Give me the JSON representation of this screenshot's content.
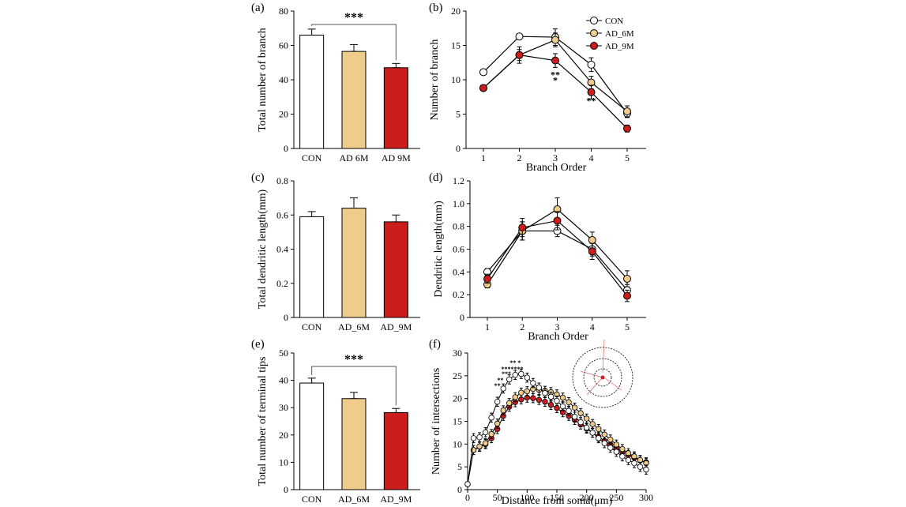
{
  "colors": {
    "con": "#ffffff",
    "ad6": "#f0cc8c",
    "ad9": "#cc1c1c",
    "axis": "#000000",
    "bracket": "#555555",
    "star_olive": "#8c8c20",
    "star_red": "#cc2020"
  },
  "chart_data": [
    {
      "panel": "(a)",
      "type": "bar",
      "ylabel": "Total number of branch",
      "categories": [
        "CON",
        "AD  6M",
        "AD  9M"
      ],
      "values": [
        66,
        56.5,
        47
      ],
      "errors": [
        3.5,
        4,
        2.5
      ],
      "ylim": [
        0,
        80
      ],
      "yticks": [
        "0",
        "20",
        "40",
        "60",
        "80"
      ],
      "significance": "***"
    },
    {
      "panel": "(b)",
      "type": "line",
      "xlabel": "Branch Order",
      "ylabel": "Number of branch",
      "x": [
        "1",
        "2",
        "3",
        "4",
        "5"
      ],
      "ylim": [
        0,
        20
      ],
      "yticks": [
        "0",
        "5",
        "10",
        "15",
        "20"
      ],
      "series": [
        {
          "name": "CON",
          "values": [
            11.1,
            16.3,
            16.2,
            12.2,
            5.1
          ],
          "errors": [
            0.4,
            0.4,
            1.2,
            1.0,
            0.6
          ]
        },
        {
          "name": "AD_6M",
          "values": [
            8.8,
            13.6,
            15.8,
            9.6,
            5.4
          ],
          "errors": [
            0.4,
            0.8,
            1.0,
            0.9,
            0.8
          ]
        },
        {
          "name": "AD_9M",
          "values": [
            8.8,
            13.6,
            12.8,
            8.2,
            2.9
          ],
          "errors": [
            0.4,
            1.2,
            1.0,
            1.0,
            0.5
          ]
        }
      ],
      "annotations": [
        {
          "x": "3",
          "y": 10.3,
          "text": "**"
        },
        {
          "x": "3",
          "y": 9.5,
          "text": "*"
        },
        {
          "x": "4",
          "y": 6.5,
          "text": "**"
        }
      ]
    },
    {
      "panel": "(c)",
      "type": "bar",
      "ylabel": "Total dendritic length(mm)",
      "categories": [
        "CON",
        "AD_6M",
        "AD_9M"
      ],
      "values": [
        0.59,
        0.64,
        0.56
      ],
      "errors": [
        0.03,
        0.06,
        0.04
      ],
      "ylim": [
        0,
        0.8
      ],
      "yticks": [
        "0",
        "0.2",
        "0.4",
        "0.6",
        "0.8"
      ]
    },
    {
      "panel": "(d)",
      "type": "line",
      "xlabel": "Branch Order",
      "ylabel": "Dendritic length(mm)",
      "x": [
        "1",
        "2",
        "3",
        "4",
        "5"
      ],
      "ylim": [
        0,
        1.2
      ],
      "yticks": [
        "0",
        "0.2",
        "0.4",
        "0.6",
        "0.8",
        "1.0",
        "1.2"
      ],
      "series": [
        {
          "name": "CON",
          "values": [
            0.4,
            0.76,
            0.76,
            0.6,
            0.24
          ],
          "errors": [
            0.03,
            0.08,
            0.05,
            0.06,
            0.05
          ]
        },
        {
          "name": "AD_6M",
          "values": [
            0.29,
            0.76,
            0.95,
            0.68,
            0.34
          ],
          "errors": [
            0.03,
            0.08,
            0.1,
            0.07,
            0.07
          ]
        },
        {
          "name": "AD_9M",
          "values": [
            0.34,
            0.79,
            0.85,
            0.58,
            0.19
          ],
          "errors": [
            0.04,
            0.08,
            0.08,
            0.07,
            0.05
          ]
        }
      ]
    },
    {
      "panel": "(e)",
      "type": "bar",
      "ylabel": "Total number of terminal tips",
      "categories": [
        "CON",
        "AD_6M",
        "AD_9M"
      ],
      "values": [
        39,
        33.3,
        28.2
      ],
      "errors": [
        1.8,
        2.3,
        1.5
      ],
      "ylim": [
        0,
        50
      ],
      "yticks": [
        "0",
        "10",
        "20",
        "30",
        "40",
        "50"
      ],
      "significance": "***"
    },
    {
      "panel": "(f)",
      "type": "line",
      "xlabel": "Distance from soma(μm)",
      "ylabel": "Number of intersections",
      "xlim": [
        0,
        300
      ],
      "xticks": [
        "0",
        "50",
        "100",
        "150",
        "200",
        "250",
        "300"
      ],
      "ylim": [
        0,
        30
      ],
      "yticks": [
        "0",
        "5",
        "10",
        "15",
        "20",
        "25",
        "30"
      ],
      "x": [
        0,
        10,
        20,
        30,
        40,
        50,
        60,
        70,
        80,
        90,
        100,
        110,
        120,
        130,
        140,
        150,
        160,
        170,
        180,
        190,
        200,
        210,
        220,
        230,
        240,
        250,
        260,
        270,
        280,
        290,
        300
      ],
      "series": [
        {
          "name": "CON",
          "values": [
            1.2,
            11.3,
            11.5,
            12.6,
            15.8,
            19.3,
            22.2,
            24.2,
            25.2,
            25.4,
            24.6,
            23.4,
            22.4,
            21.2,
            20.4,
            19.5,
            18.3,
            17.3,
            16.0,
            14.8,
            13.6,
            12.5,
            11.3,
            10.2,
            9.2,
            8.3,
            7.3,
            6.5,
            5.8,
            5.0,
            4.4
          ]
        },
        {
          "name": "AD_6M",
          "values": [
            1.2,
            8.7,
            9.5,
            10.2,
            12.2,
            14.5,
            17.4,
            19.0,
            20.3,
            21.3,
            21.6,
            22.1,
            21.9,
            21.7,
            21.4,
            20.9,
            20.2,
            19.2,
            18.0,
            16.8,
            15.6,
            14.4,
            13.3,
            12.1,
            11.0,
            9.9,
            8.9,
            8.0,
            7.3,
            6.5,
            5.8
          ]
        },
        {
          "name": "AD_9M",
          "values": [
            1.2,
            8.7,
            9.4,
            10.0,
            11.3,
            13.3,
            16.2,
            18.2,
            19.2,
            19.8,
            20.2,
            20.1,
            19.7,
            19.3,
            18.6,
            17.9,
            17.0,
            16.2,
            15.3,
            14.3,
            13.4,
            12.5,
            11.6,
            10.7,
            9.9,
            9.0,
            8.3,
            7.6,
            7.0,
            6.4,
            6.0
          ]
        }
      ],
      "annotations": [
        {
          "x": 80,
          "y": 27.4,
          "text": "** *"
        },
        {
          "x": 75,
          "y": 26.0,
          "text": "*******"
        },
        {
          "x": 65,
          "y": 25.0,
          "text": "***"
        },
        {
          "x": 55,
          "y": 23.6,
          "text": "**"
        },
        {
          "x": 50,
          "y": 22.4,
          "text": "**"
        }
      ]
    }
  ],
  "legend": [
    "CON",
    "AD_6M",
    "AD_9M"
  ]
}
